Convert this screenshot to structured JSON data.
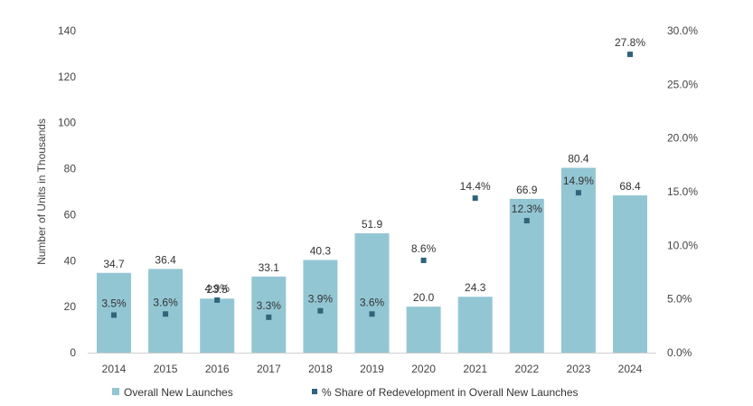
{
  "chart_data": {
    "type": "bar",
    "title": "",
    "categories": [
      "2014",
      "2015",
      "2016",
      "2017",
      "2018",
      "2019",
      "2020",
      "2021",
      "2022",
      "2023",
      "2024"
    ],
    "series": [
      {
        "name": "Overall New Launches",
        "type": "bar",
        "axis": "left",
        "color": "#93c6d3",
        "values": [
          34.7,
          36.4,
          23.5,
          33.1,
          40.3,
          51.9,
          20.0,
          24.3,
          66.9,
          80.4,
          68.4
        ],
        "labels": [
          "34.7",
          "36.4",
          "23.5",
          "33.1",
          "40.3",
          "51.9",
          "20.0",
          "24.3",
          "66.9",
          "80.4",
          "68.4"
        ]
      },
      {
        "name": "% Share of Redevelopment in Overall New Launches",
        "type": "scatter",
        "axis": "right",
        "color": "#2f6479",
        "values": [
          3.5,
          3.6,
          4.9,
          3.3,
          3.9,
          3.6,
          8.6,
          14.4,
          12.3,
          14.9,
          27.8
        ],
        "labels": [
          "3.5%",
          "3.6%",
          "4.9%",
          "3.3%",
          "3.9%",
          "3.6%",
          "8.6%",
          "14.4%",
          "12.3%",
          "14.9%",
          "27.8%"
        ]
      }
    ],
    "y_left": {
      "label": "Number of Units in Thousands",
      "min": 0,
      "max": 140,
      "ticks": [
        0,
        20,
        40,
        60,
        80,
        100,
        120,
        140
      ],
      "tick_labels": [
        "0",
        "20",
        "40",
        "60",
        "80",
        "100",
        "120",
        "140"
      ]
    },
    "y_right": {
      "min": 0,
      "max": 30,
      "ticks": [
        0,
        5,
        10,
        15,
        20,
        25,
        30
      ],
      "tick_labels": [
        "0.0%",
        "5.0%",
        "10.0%",
        "15.0%",
        "20.0%",
        "25.0%",
        "30.0%"
      ]
    },
    "grid": false,
    "legend_position": "bottom"
  }
}
